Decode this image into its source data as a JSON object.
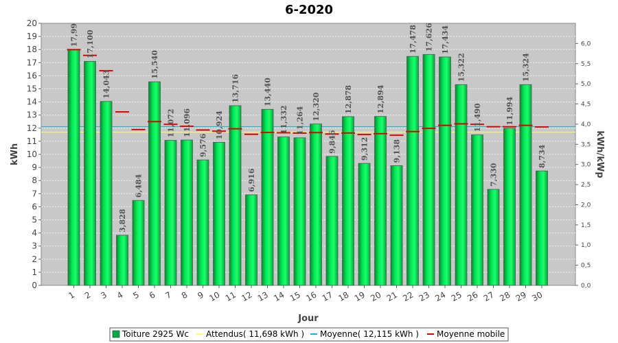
{
  "chart_data": {
    "type": "bar",
    "title": "6-2020",
    "xlabel": "Jour",
    "ylabel": "kWh",
    "ylabel_right": "kWh/kWp",
    "ylim": [
      0,
      20
    ],
    "ylim_right": [
      0,
      6.5
    ],
    "y_ticks": [
      "0",
      "1",
      "2",
      "3",
      "4",
      "5",
      "6",
      "7",
      "8",
      "9",
      "10",
      "11",
      "12",
      "13",
      "14",
      "15",
      "16",
      "17",
      "18",
      "19",
      "20"
    ],
    "y_ticks_right": [
      "0,0",
      "0,5",
      "1,0",
      "1,5",
      "2,0",
      "2,5",
      "3,0",
      "3,5",
      "4,0",
      "4,5",
      "5,0",
      "5,5",
      "6,0"
    ],
    "categories": [
      "1",
      "2",
      "3",
      "4",
      "5",
      "6",
      "7",
      "8",
      "9",
      "10",
      "11",
      "12",
      "13",
      "14",
      "15",
      "16",
      "17",
      "18",
      "19",
      "20",
      "21",
      "22",
      "23",
      "24",
      "25",
      "26",
      "27",
      "28",
      "29",
      "30"
    ],
    "series": [
      {
        "name": "Toiture 2925 Wc",
        "type": "bar",
        "color": "#00cc44",
        "values": [
          17.99,
          17.1,
          14.043,
          3.828,
          6.484,
          15.54,
          11.072,
          11.096,
          9.576,
          10.924,
          13.716,
          6.916,
          13.44,
          11.332,
          11.264,
          12.32,
          9.846,
          12.878,
          9.312,
          12.894,
          9.138,
          17.478,
          17.626,
          17.434,
          15.322,
          11.49,
          7.33,
          11.994,
          15.324,
          8.734
        ],
        "labels": [
          "17,99",
          "17,100",
          "14,043",
          "3,828",
          "6,484",
          "15,540",
          "11,072",
          "11,096",
          "9,576",
          "10,924",
          "13,716",
          "6,916",
          "13,440",
          "11,332",
          "11,264",
          "12,320",
          "9,846",
          "12,878",
          "9,312",
          "12,894",
          "9,138",
          "17,478",
          "17,626",
          "17,434",
          "15,322",
          "11,490",
          "7,330",
          "11,994",
          "15,324",
          "8,734"
        ]
      },
      {
        "name": "Attendus( 11,698 kWh )",
        "type": "hline",
        "color": "#ffff66",
        "value": 11.698
      },
      {
        "name": "Moyenne( 12,115 kWh )",
        "type": "hline",
        "color": "#00bbcc",
        "value": 12.115
      },
      {
        "name": "Moyenne mobile",
        "type": "marker",
        "color": "#dd0000",
        "values": [
          17.99,
          17.55,
          16.38,
          13.24,
          11.89,
          12.5,
          12.29,
          12.14,
          11.86,
          11.77,
          11.95,
          11.53,
          11.67,
          11.65,
          11.62,
          11.66,
          11.55,
          11.63,
          11.51,
          11.58,
          11.46,
          11.74,
          11.98,
          12.21,
          12.33,
          12.29,
          12.11,
          12.11,
          12.21,
          12.09
        ]
      }
    ],
    "legend": [
      {
        "label": "Toiture 2925 Wc",
        "color": "#00aa44"
      },
      {
        "label": "Attendus( 11,698 kWh )",
        "color": "#ffff66"
      },
      {
        "label": "Moyenne( 12,115 kWh )",
        "color": "#00bbcc"
      },
      {
        "label": "Moyenne mobile",
        "color": "#dd0000"
      }
    ],
    "legend_placement": "bottom",
    "grid": true
  }
}
